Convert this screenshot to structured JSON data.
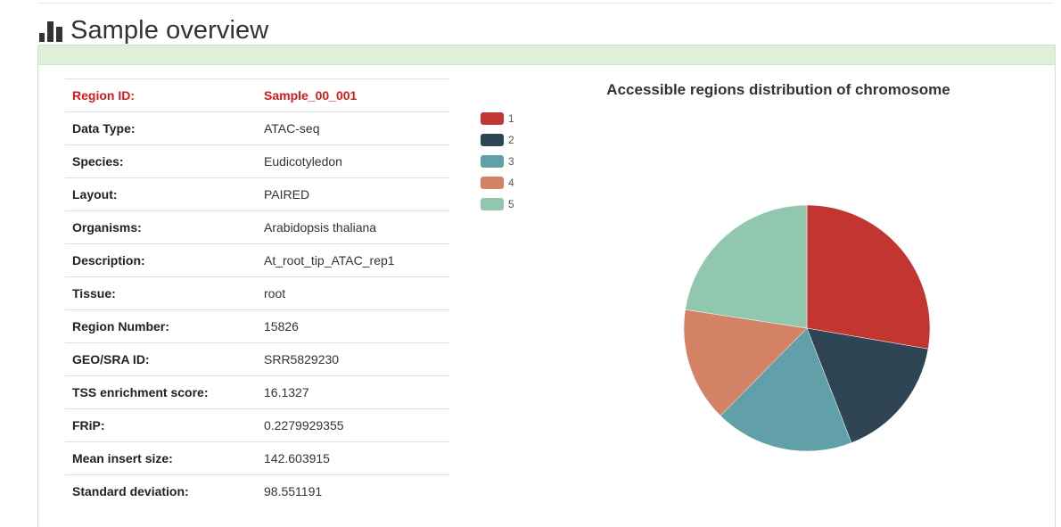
{
  "header": {
    "title": "Sample overview",
    "icon": "bar-chart-icon"
  },
  "info": {
    "rows": [
      {
        "label": "Region ID:",
        "value": "Sample_00_001",
        "highlight": true
      },
      {
        "label": "Data Type:",
        "value": "ATAC-seq"
      },
      {
        "label": "Species:",
        "value": "Eudicotyledon"
      },
      {
        "label": "Layout:",
        "value": "PAIRED"
      },
      {
        "label": "Organisms:",
        "value": "Arabidopsis thaliana"
      },
      {
        "label": "Description:",
        "value": "At_root_tip_ATAC_rep1"
      },
      {
        "label": "Tissue:",
        "value": "root"
      },
      {
        "label": "Region Number:",
        "value": "15826"
      },
      {
        "label": "GEO/SRA ID:",
        "value": "SRR5829230"
      },
      {
        "label": "TSS enrichment score:",
        "value": "16.1327"
      },
      {
        "label": "FRiP:",
        "value": "0.2279929355"
      },
      {
        "label": "Mean insert size:",
        "value": "142.603915"
      },
      {
        "label": "Standard deviation:",
        "value": "98.551191"
      }
    ]
  },
  "colors": {
    "highlight": "#d51a1a",
    "panel_heading": "#dff0d8"
  },
  "chart_data": {
    "type": "pie",
    "title": "Accessible regions distribution of chromosome",
    "legend_position": "top-left",
    "categories": [
      "1",
      "2",
      "3",
      "4",
      "5"
    ],
    "values": [
      27.7,
      16.4,
      18.3,
      15.0,
      22.6
    ],
    "colors": [
      "#c23531",
      "#2f4554",
      "#61a0a8",
      "#d48265",
      "#91c7ae"
    ]
  }
}
